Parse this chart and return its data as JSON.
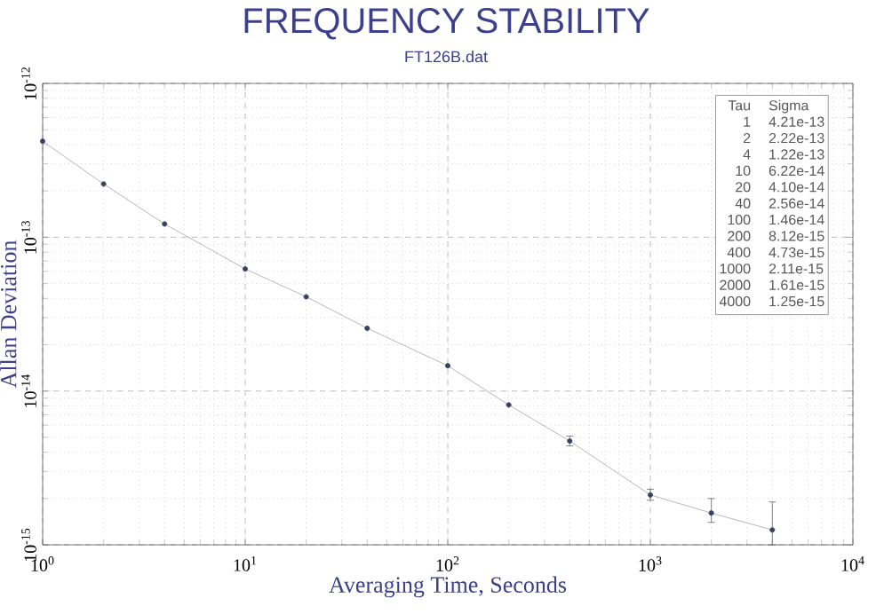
{
  "chart_data": {
    "type": "line",
    "title": "FREQUENCY STABILITY",
    "subtitle": "FT126B.dat",
    "xlabel": "Averaging Time, Seconds",
    "ylabel": "Allan Deviation",
    "log": "xy",
    "grid": true,
    "marker": "circle",
    "line_style": "solid",
    "xlim": [
      1,
      10000
    ],
    "ylim": [
      1e-15,
      1e-12
    ],
    "xticks": [
      {
        "value": 1,
        "label": "10$^{0}$"
      },
      {
        "value": 10,
        "label": "10$^{1}$"
      },
      {
        "value": 100,
        "label": "10$^{2}$"
      },
      {
        "value": 1000,
        "label": "10$^{3}$"
      },
      {
        "value": 10000,
        "label": "10$^{4}$"
      }
    ],
    "yticks": [
      {
        "value": 1e-15,
        "label": "10$^{-15}$"
      },
      {
        "value": 1e-14,
        "label": "10$^{-14}$"
      },
      {
        "value": 1e-13,
        "label": "10$^{-13}$"
      },
      {
        "value": 1e-12,
        "label": "10$^{-12}$"
      }
    ],
    "annotations": [
      "Tau",
      "Sigma",
      "1",
      "4.21e-13",
      "2",
      "2.22e-13",
      "4",
      "1.22e-13",
      "10",
      "6.22e-14",
      "20",
      "4.10e-14",
      "40",
      "2.56e-14",
      "100",
      "1.46e-14",
      "200",
      "8.12e-15",
      "400",
      "4.73e-15",
      "1000",
      "2.11e-15",
      "2000",
      "1.61e-15",
      "4000",
      "1.25e-15"
    ],
    "x": [
      1,
      2,
      4,
      10,
      20,
      40,
      100,
      200,
      400,
      1000,
      2000,
      4000
    ],
    "series": [
      {
        "color": "#3a4060",
        "values": [
          4.21e-13,
          2.22e-13,
          1.22e-13,
          6.22e-14,
          4.1e-14,
          2.56e-14,
          1.46e-14,
          8.12e-15,
          4.73e-15,
          2.11e-15,
          1.61e-15,
          1.25e-15
        ],
        "errors": [
          null,
          null,
          null,
          null,
          null,
          null,
          null,
          null,
          [
            4.4e-15,
            5.1e-15
          ],
          [
            1.95e-15,
            2.3e-15
          ],
          [
            1.4e-15,
            2e-15
          ],
          [
            1e-15,
            1.9e-15
          ]
        ]
      }
    ]
  }
}
